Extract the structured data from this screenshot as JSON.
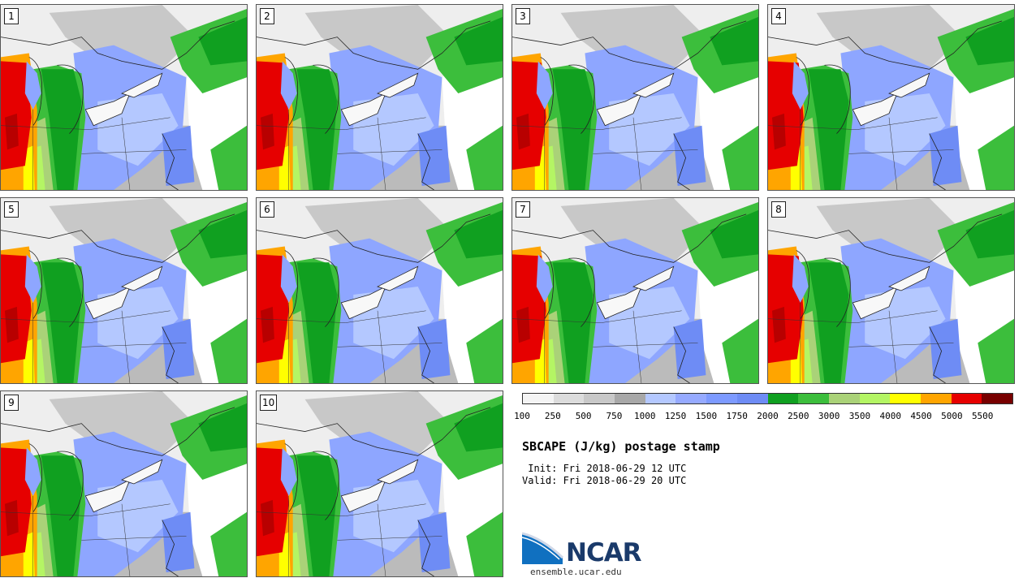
{
  "title": "SBCAPE (J/kg) postage stamp",
  "init_line": " Init: Fri 2018-06-29 12 UTC",
  "valid_line": "Valid: Fri 2018-06-29 20 UTC",
  "panels": [
    "1",
    "2",
    "3",
    "4",
    "5",
    "6",
    "7",
    "8",
    "9",
    "10"
  ],
  "colorbar": {
    "ticks": [
      "100",
      "250",
      "500",
      "750",
      "1000",
      "1250",
      "1500",
      "1750",
      "2000",
      "2500",
      "3000",
      "3500",
      "4000",
      "4500",
      "5000",
      "5500"
    ],
    "colors": [
      "#f4f4f4",
      "#dcdcdc",
      "#c8c8c8",
      "#a8a8a8",
      "#b4c8ff",
      "#96aaff",
      "#7d9aff",
      "#6e8cf5",
      "#10a020",
      "#3cbe3c",
      "#aad278",
      "#b4f564",
      "#ffff00",
      "#ffa500",
      "#e60000",
      "#780000"
    ]
  },
  "logo": {
    "name": "NCAR",
    "url": "ensemble.ucar.edu"
  }
}
